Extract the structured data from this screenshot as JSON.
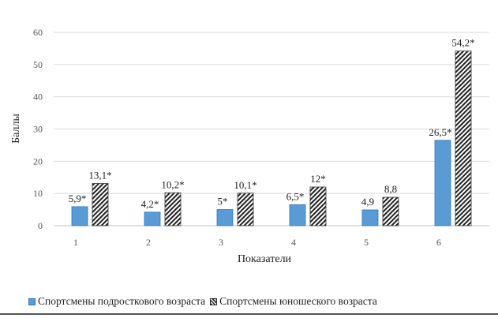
{
  "chart_data": {
    "type": "bar",
    "title": "",
    "xlabel": "Показатели",
    "ylabel": "Баллы",
    "ylim": [
      0,
      60
    ],
    "yticks": [
      0,
      10,
      20,
      30,
      40,
      50,
      60
    ],
    "categories": [
      "1",
      "2",
      "3",
      "4",
      "5",
      "6"
    ],
    "grid": true,
    "legend_position": "bottom",
    "series": [
      {
        "name": "Спортсмены подросткового возраста",
        "values": [
          5.9,
          4.2,
          5,
          6.5,
          4.9,
          26.5
        ],
        "labels": [
          "5,9*",
          "4,2*",
          "5*",
          "6,5*",
          "4,9",
          "26,5*"
        ],
        "color": "#5b9bd5",
        "pattern": "solid"
      },
      {
        "name": "Спортсмены юношеского возраста",
        "values": [
          13.1,
          10.2,
          10.1,
          12,
          8.8,
          54.2
        ],
        "labels": [
          "13,1*",
          "10,2*",
          "10,1*",
          "12*",
          "8,8",
          "54,2*"
        ],
        "color": "#222222",
        "pattern": "hatched"
      }
    ]
  }
}
